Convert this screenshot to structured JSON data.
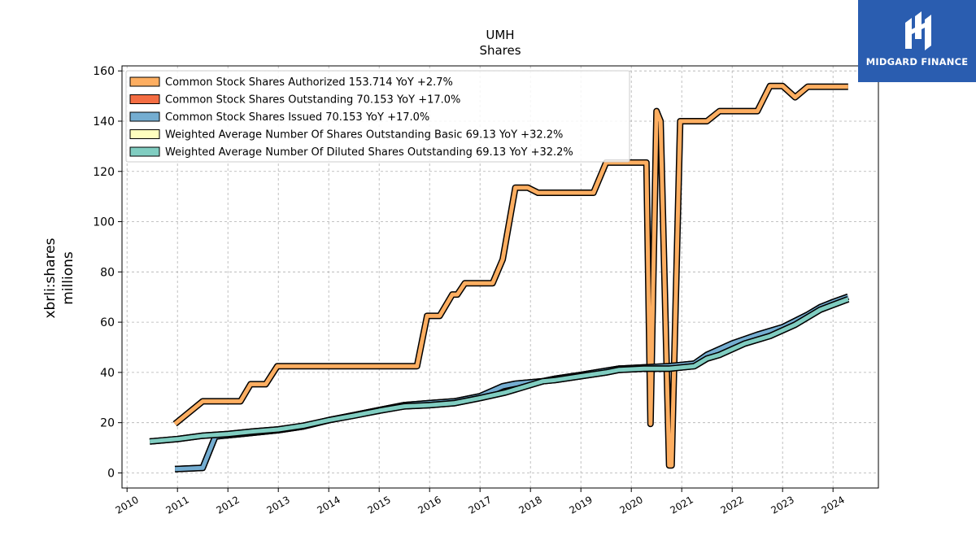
{
  "logo": {
    "text": "MIDGARD FINANCE",
    "icon": "midgard-logo-icon",
    "color": "#2a5db0"
  },
  "chart_data": {
    "type": "line",
    "title": "UMH",
    "subtitle": "Shares",
    "ylabel_line1": "xbrli:shares",
    "ylabel_line2": "millions",
    "xlim": [
      2009.9,
      2024.9
    ],
    "ylim": [
      -6,
      162
    ],
    "yticks": [
      0,
      20,
      40,
      60,
      80,
      100,
      120,
      140,
      160
    ],
    "xticks": [
      "2010",
      "2011",
      "2012",
      "2013",
      "2014",
      "2015",
      "2016",
      "2017",
      "2018",
      "2019",
      "2020",
      "2021",
      "2022",
      "2023",
      "2024"
    ],
    "grid": true,
    "legend_position": "top-left",
    "series": [
      {
        "name": "Common Stock Shares Authorized",
        "legend": "Common Stock Shares Authorized  153.714 YoY +2.7%",
        "color": "#fdae61",
        "points": [
          [
            2010.95,
            19.5
          ],
          [
            2011.5,
            28.5
          ],
          [
            2012.25,
            28.5
          ],
          [
            2012.45,
            35.3
          ],
          [
            2012.75,
            35.3
          ],
          [
            2012.98,
            42.5
          ],
          [
            2015.75,
            42.5
          ],
          [
            2015.95,
            62.5
          ],
          [
            2016.2,
            62.5
          ],
          [
            2016.45,
            71
          ],
          [
            2016.55,
            71
          ],
          [
            2016.7,
            75.5
          ],
          [
            2017.25,
            75.5
          ],
          [
            2017.45,
            85
          ],
          [
            2017.7,
            113.5
          ],
          [
            2017.95,
            113.5
          ],
          [
            2018.15,
            111.5
          ],
          [
            2019.25,
            111.5
          ],
          [
            2019.5,
            123.5
          ],
          [
            2020.25,
            123.5
          ],
          [
            2020.3,
            123.5
          ],
          [
            2020.38,
            19.5
          ],
          [
            2020.5,
            144
          ],
          [
            2020.58,
            140
          ],
          [
            2020.75,
            3
          ],
          [
            2020.8,
            3
          ],
          [
            2020.97,
            140
          ],
          [
            2021.5,
            140
          ],
          [
            2021.75,
            144
          ],
          [
            2022.5,
            144
          ],
          [
            2022.75,
            154
          ],
          [
            2023.0,
            154
          ],
          [
            2023.25,
            149.5
          ],
          [
            2023.5,
            153.7
          ],
          [
            2024.3,
            153.7
          ]
        ]
      },
      {
        "name": "Common Stock Shares Outstanding",
        "legend": "Common Stock Shares Outstanding  70.153 YoY +17.0%",
        "color": "#f46d43",
        "points": [
          [
            2010.95,
            1.5
          ],
          [
            2011.5,
            2
          ],
          [
            2011.75,
            14.5
          ],
          [
            2012.25,
            15.5
          ],
          [
            2013.0,
            17
          ],
          [
            2013.5,
            18.5
          ],
          [
            2014.0,
            21
          ],
          [
            2014.5,
            23
          ],
          [
            2015.0,
            25
          ],
          [
            2015.5,
            27
          ],
          [
            2016.0,
            27.8
          ],
          [
            2016.5,
            28.5
          ],
          [
            2017.0,
            30.5
          ],
          [
            2017.45,
            34.5
          ],
          [
            2017.7,
            35.5
          ],
          [
            2018.25,
            36.5
          ],
          [
            2018.5,
            37.5
          ],
          [
            2019.0,
            39
          ],
          [
            2019.75,
            41.5
          ],
          [
            2020.25,
            42
          ],
          [
            2020.75,
            42.5
          ],
          [
            2021.25,
            43.5
          ],
          [
            2021.5,
            47
          ],
          [
            2022.0,
            51.5
          ],
          [
            2022.5,
            55
          ],
          [
            2023.0,
            58
          ],
          [
            2023.5,
            63
          ],
          [
            2023.75,
            66
          ],
          [
            2024.0,
            68
          ],
          [
            2024.3,
            70.15
          ]
        ]
      },
      {
        "name": "Common Stock Shares Issued",
        "legend": "Common Stock Shares Issued  70.153 YoY +17.0%",
        "color": "#74add1",
        "points": [
          [
            2010.95,
            1.5
          ],
          [
            2011.5,
            2
          ],
          [
            2011.75,
            14.5
          ],
          [
            2012.25,
            15.5
          ],
          [
            2013.0,
            17
          ],
          [
            2013.5,
            18.5
          ],
          [
            2014.0,
            21
          ],
          [
            2014.5,
            23
          ],
          [
            2015.0,
            25
          ],
          [
            2015.5,
            27
          ],
          [
            2016.0,
            27.8
          ],
          [
            2016.5,
            28.5
          ],
          [
            2017.0,
            30.5
          ],
          [
            2017.45,
            34.5
          ],
          [
            2017.7,
            35.5
          ],
          [
            2018.25,
            36.5
          ],
          [
            2018.5,
            37.5
          ],
          [
            2019.0,
            39
          ],
          [
            2019.75,
            41.5
          ],
          [
            2020.25,
            42
          ],
          [
            2020.75,
            42.5
          ],
          [
            2021.25,
            43.5
          ],
          [
            2021.5,
            47
          ],
          [
            2022.0,
            51.5
          ],
          [
            2022.5,
            55
          ],
          [
            2023.0,
            58
          ],
          [
            2023.5,
            63
          ],
          [
            2023.75,
            66
          ],
          [
            2024.0,
            68
          ],
          [
            2024.3,
            70.15
          ]
        ]
      },
      {
        "name": "Weighted Average Number Of Shares Outstanding Basic",
        "legend": "Weighted Average Number Of Shares Outstanding Basic  69.13 YoY +32.2%",
        "color": "#ffffbf",
        "points": [
          [
            2010.45,
            12.5
          ],
          [
            2011.0,
            13.5
          ],
          [
            2011.5,
            14.8
          ],
          [
            2012.0,
            15.5
          ],
          [
            2012.5,
            16.5
          ],
          [
            2013.0,
            17.3
          ],
          [
            2013.5,
            18.8
          ],
          [
            2014.0,
            21
          ],
          [
            2014.5,
            22.8
          ],
          [
            2015.0,
            24.8
          ],
          [
            2015.5,
            26.5
          ],
          [
            2016.0,
            27
          ],
          [
            2016.5,
            27.8
          ],
          [
            2017.0,
            29.8
          ],
          [
            2017.5,
            32
          ],
          [
            2018.0,
            35
          ],
          [
            2018.25,
            36.5
          ],
          [
            2018.5,
            37
          ],
          [
            2019.0,
            38.5
          ],
          [
            2019.5,
            40
          ],
          [
            2019.75,
            41
          ],
          [
            2020.25,
            41.5
          ],
          [
            2020.75,
            41.5
          ],
          [
            2021.25,
            42.5
          ],
          [
            2021.5,
            45.5
          ],
          [
            2021.75,
            47
          ],
          [
            2022.25,
            51.5
          ],
          [
            2022.75,
            54.5
          ],
          [
            2023.25,
            59
          ],
          [
            2023.75,
            65
          ],
          [
            2024.3,
            69.13
          ]
        ]
      },
      {
        "name": "Weighted Average Number Of Diluted Shares Outstanding",
        "legend": "Weighted Average Number Of Diluted Shares Outstanding  69.13 YoY +32.2%",
        "color": "#80cdc1",
        "points": [
          [
            2010.45,
            12.5
          ],
          [
            2011.0,
            13.5
          ],
          [
            2011.5,
            14.8
          ],
          [
            2012.0,
            15.5
          ],
          [
            2012.5,
            16.5
          ],
          [
            2013.0,
            17.3
          ],
          [
            2013.5,
            18.8
          ],
          [
            2014.0,
            21
          ],
          [
            2014.5,
            22.8
          ],
          [
            2015.0,
            24.8
          ],
          [
            2015.5,
            26.5
          ],
          [
            2016.0,
            27
          ],
          [
            2016.5,
            27.8
          ],
          [
            2017.0,
            29.8
          ],
          [
            2017.5,
            32
          ],
          [
            2018.0,
            35
          ],
          [
            2018.25,
            36.5
          ],
          [
            2018.5,
            37
          ],
          [
            2019.0,
            38.5
          ],
          [
            2019.5,
            40
          ],
          [
            2019.75,
            41
          ],
          [
            2020.25,
            41.5
          ],
          [
            2020.75,
            41.5
          ],
          [
            2021.25,
            42.5
          ],
          [
            2021.5,
            45.5
          ],
          [
            2021.75,
            47
          ],
          [
            2022.25,
            51.5
          ],
          [
            2022.75,
            54.5
          ],
          [
            2023.25,
            59
          ],
          [
            2023.75,
            65
          ],
          [
            2024.3,
            69.13
          ]
        ]
      }
    ]
  }
}
